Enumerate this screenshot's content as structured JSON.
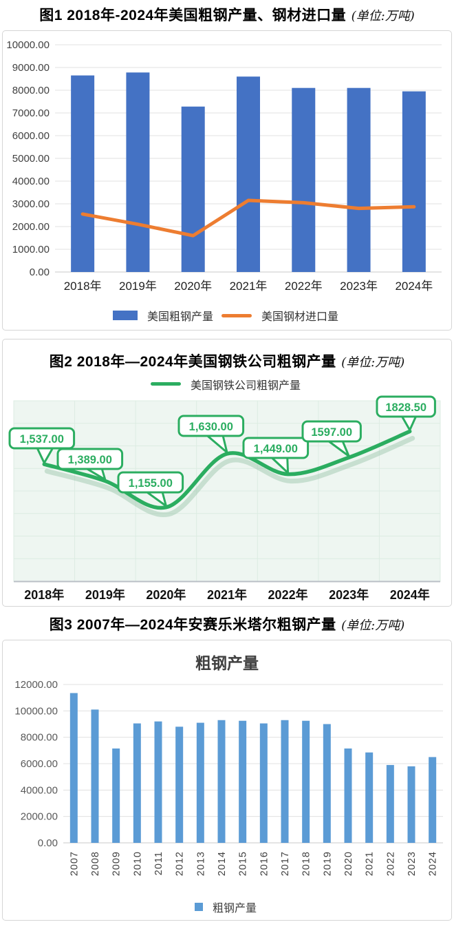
{
  "page": {
    "bg": "#ffffff"
  },
  "figures": [
    {
      "heading": {
        "main": "图1 2018年-2024年美国粗钢产量、钢材进口量",
        "unit": "(单位:万吨)"
      }
    },
    {
      "heading": {
        "main": "图2  2018年—2024年美国钢铁公司粗钢产量",
        "unit": "(单位:万吨)"
      }
    },
    {
      "heading": {
        "main": "图3 2007年—2024年安赛乐米塔尔粗钢产量",
        "unit": "(单位:万吨)"
      }
    }
  ],
  "chart_data": [
    {
      "type": "bar",
      "title": "",
      "categories": [
        "2018年",
        "2019年",
        "2020年",
        "2021年",
        "2022年",
        "2023年",
        "2024年"
      ],
      "series": [
        {
          "name": "美国粗钢产量",
          "type": "bar",
          "color": "#4472C4",
          "values": [
            8650,
            8780,
            7280,
            8600,
            8100,
            8100,
            7950
          ]
        },
        {
          "name": "美国钢材进口量",
          "type": "line",
          "color": "#ED7D31",
          "values": [
            2550,
            2100,
            1600,
            3150,
            3050,
            2800,
            2870
          ]
        }
      ],
      "ylim": [
        0,
        10000
      ],
      "ytick_step": 1000,
      "ytick_format": "0.00",
      "grid": true,
      "legend_position": "bottom",
      "tick_color": "#404040",
      "grid_color": "#e2e2e2",
      "axis_color": "#c9c9c9"
    },
    {
      "type": "line",
      "title": "",
      "categories": [
        "2018年",
        "2019年",
        "2020年",
        "2021年",
        "2022年",
        "2023年",
        "2024年"
      ],
      "series": [
        {
          "name": "美国钢铁公司粗钢产量",
          "color": "#2BAD60",
          "values": [
            1537,
            1389,
            1155,
            1630,
            1449,
            1597,
            1828.5
          ]
        }
      ],
      "data_labels": [
        "1,537.00",
        "1,389.00",
        "1,155.00",
        "1,630.00",
        "1,449.00",
        "1597.00",
        "1828.50"
      ],
      "plot_bg": "#eef6f1",
      "grid": true,
      "grid_color": "#dcece2",
      "legend_position": "top",
      "tick_color": "#111111"
    },
    {
      "type": "bar",
      "title": "粗钢产量",
      "categories": [
        "2007",
        "2008",
        "2009",
        "2010",
        "2011",
        "2012",
        "2013",
        "2014",
        "2015",
        "2016",
        "2017",
        "2018",
        "2019",
        "2020",
        "2021",
        "2022",
        "2023",
        "2024"
      ],
      "series": [
        {
          "name": "粗钢产量",
          "color": "#5B9BD5",
          "values": [
            11350,
            10100,
            7150,
            9050,
            9200,
            8800,
            9100,
            9300,
            9250,
            9050,
            9300,
            9250,
            9000,
            7150,
            6850,
            5900,
            5800,
            6500
          ]
        }
      ],
      "ylim": [
        0,
        12000
      ],
      "ytick_step": 2000,
      "ytick_format": "0.00",
      "grid": true,
      "legend_position": "bottom",
      "xlabel_rotation": -90,
      "tick_color": "#595959",
      "grid_color": "#e0e0e0",
      "axis_color": "#c9c9c9"
    }
  ]
}
